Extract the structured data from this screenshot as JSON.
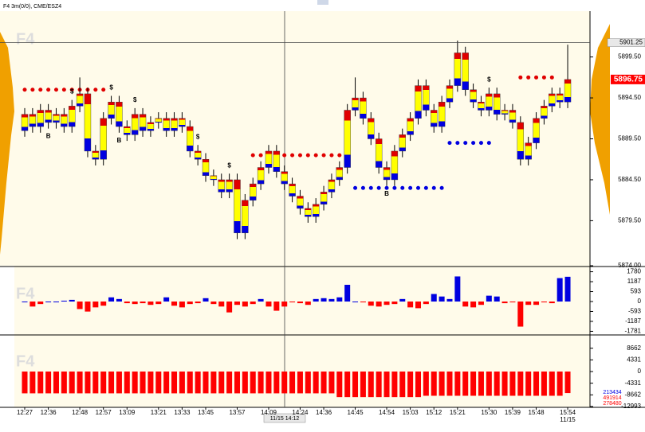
{
  "header": {
    "title": "F4 3m(0/0), CME/ESZ4"
  },
  "watermark": "F4",
  "x_axis": {
    "categories": [
      "12:27",
      null,
      null,
      "12:36",
      null,
      null,
      null,
      "12:48",
      null,
      null,
      "12:57",
      null,
      null,
      "13:09",
      null,
      null,
      null,
      "13:21",
      null,
      null,
      "13:33",
      null,
      null,
      "13:45",
      null,
      null,
      null,
      "13:57",
      null,
      null,
      null,
      "14:09",
      null,
      null,
      null,
      "14:24",
      null,
      null,
      "14:36",
      null,
      null,
      null,
      "14:45",
      null,
      null,
      null,
      "14:54",
      null,
      null,
      "15:03",
      null,
      null,
      "15:12",
      null,
      null,
      "15:21",
      null,
      null,
      null,
      "15:30",
      null,
      null,
      "15:39",
      null,
      null,
      "15:48",
      null,
      null,
      null,
      "15:54"
    ],
    "date": "11/15",
    "cursor_label": "11/15 14:12"
  },
  "chart_data": [
    {
      "type": "candlestick",
      "open": [
        5890.5,
        5892.5,
        5891,
        5893,
        5891.5,
        5892.5,
        5891,
        5893.5,
        5895,
        5888,
        5887,
        5892,
        5894,
        5891,
        5890,
        5892.5,
        5890.5,
        5891.5,
        5892,
        5890.5,
        5892,
        5891,
        5888,
        5887,
        5885,
        5884.5,
        5883,
        5884.5,
        5878,
        5882,
        5884,
        5886,
        5888,
        5885.5,
        5884,
        5882.5,
        5881,
        5880,
        5881.5,
        5883,
        5884.5,
        5886,
        5893,
        5894.5,
        5892,
        5889.5,
        5886,
        5884.5,
        5888,
        5890,
        5892,
        5896,
        5893,
        5891,
        5894,
        5896,
        5900,
        5895.5,
        5894,
        5893,
        5895,
        5892.5,
        5893,
        5891.5,
        5887,
        5889,
        5892,
        5893.5,
        5895,
        5894
      ],
      "high": [
        5893.25,
        5893.25,
        5893.75,
        5893.75,
        5893.25,
        5893.25,
        5894.25,
        5897,
        5895.75,
        5888.75,
        5892.75,
        5894.75,
        5894.75,
        5891.75,
        5893.25,
        5893.25,
        5892.25,
        5892.75,
        5892.75,
        5892.75,
        5892.75,
        5891.75,
        5888.75,
        5887.75,
        5885.75,
        5885.25,
        5885.25,
        5885.25,
        5882.75,
        5884.75,
        5886.75,
        5888.75,
        5888.75,
        5886.25,
        5884.75,
        5883.25,
        5881.75,
        5882.25,
        5883.75,
        5885.25,
        5886.75,
        5893.75,
        5897,
        5895.25,
        5892.75,
        5890.25,
        5886.75,
        5888.75,
        5890.75,
        5892.75,
        5896.75,
        5896.75,
        5893.75,
        5894.75,
        5896.75,
        5901.5,
        5900.75,
        5896.25,
        5894.75,
        5895.75,
        5895.75,
        5893.75,
        5893.75,
        5892.25,
        5889.75,
        5892.75,
        5894.25,
        5895.75,
        5895.75,
        5901
      ],
      "low": [
        5889.75,
        5890.25,
        5890.25,
        5890.75,
        5890.75,
        5890.25,
        5890.25,
        5892.75,
        5887.25,
        5886.25,
        5886.25,
        5891.25,
        5890.25,
        5889.25,
        5889.25,
        5889.75,
        5889.75,
        5890.75,
        5889.75,
        5889.75,
        5890.25,
        5887.25,
        5886.25,
        5884.25,
        5883.75,
        5882.25,
        5882.25,
        5877.25,
        5877.25,
        5881.25,
        5883.25,
        5885.25,
        5884.75,
        5883.25,
        5881.75,
        5880.25,
        5879.25,
        5879.25,
        5880.75,
        5882.25,
        5883.75,
        5885.25,
        5892.25,
        5891.25,
        5888.75,
        5885.25,
        5883.75,
        5883.75,
        5887.25,
        5889.25,
        5891.25,
        5892.25,
        5890.25,
        5890.25,
        5893.25,
        5895.25,
        5894.75,
        5893.25,
        5892.25,
        5892.25,
        5891.75,
        5891.75,
        5890.75,
        5886.25,
        5886.25,
        5888.25,
        5891.25,
        5892.75,
        5893.25,
        5893.25
      ],
      "close": [
        5892.5,
        5891,
        5893,
        5891.5,
        5892.5,
        5891,
        5893.5,
        5895,
        5888,
        5887,
        5892,
        5894,
        5891,
        5890,
        5892.5,
        5890.5,
        5891.5,
        5892,
        5890.5,
        5892,
        5891,
        5888,
        5887,
        5885,
        5884.5,
        5883,
        5884.5,
        5878,
        5882,
        5884,
        5886,
        5888,
        5885.5,
        5884,
        5882.5,
        5881,
        5880,
        5881.5,
        5883,
        5884.5,
        5886,
        5893,
        5894.5,
        5892,
        5889.5,
        5886,
        5884.5,
        5888,
        5890,
        5892,
        5896,
        5893,
        5891,
        5894,
        5896,
        5900,
        5895.5,
        5894,
        5893,
        5895,
        5892.5,
        5893,
        5891.5,
        5887,
        5889,
        5892,
        5893.5,
        5895,
        5894,
        5896.75
      ],
      "colors": {
        "top": "#e00000",
        "body": "#ffff00",
        "bottom": "#0000e0",
        "wick": "#000000"
      },
      "ylim": [
        5874,
        5905
      ],
      "yticks": [
        {
          "value": 5899.5,
          "label": "5899.50"
        },
        {
          "value": 5894.5,
          "label": "5894.50"
        },
        {
          "value": 5889.5,
          "label": "5889.50"
        },
        {
          "value": 5884.5,
          "label": "5884.50"
        },
        {
          "value": 5879.5,
          "label": "5879.50"
        },
        {
          "value": 5874,
          "label": "5874.00"
        }
      ],
      "last_price": 5896.75,
      "cursor_price": 5901.25,
      "levels": [
        {
          "value": 5887.5,
          "color": "#e00000",
          "from": 29,
          "to": 41
        },
        {
          "value": 5883.5,
          "color": "#0000e0",
          "from": 42,
          "to": 53
        },
        {
          "value": 5889,
          "color": "#0000e0",
          "from": 54,
          "to": 59
        },
        {
          "value": 5897,
          "color": "#e00000",
          "from": 63,
          "to": 67
        },
        {
          "value": 5895.5,
          "color": "#e00000",
          "from": 0,
          "to": 10
        }
      ],
      "annotations": [
        {
          "text": "B",
          "index": 3,
          "position": "below"
        },
        {
          "text": "B",
          "index": 12,
          "position": "below"
        },
        {
          "text": "B",
          "index": 46,
          "position": "below"
        },
        {
          "text": "$",
          "index": 6,
          "position": "above"
        },
        {
          "text": "$",
          "index": 11,
          "position": "above"
        },
        {
          "text": "$",
          "index": 14,
          "position": "above"
        },
        {
          "text": "$",
          "index": 22,
          "position": "above"
        },
        {
          "text": "$",
          "index": 26,
          "position": "above"
        },
        {
          "text": "$",
          "index": 59,
          "position": "above"
        }
      ]
    },
    {
      "type": "bar",
      "values": [
        0,
        -300,
        -150,
        0,
        0,
        50,
        100,
        -450,
        -600,
        -350,
        -250,
        250,
        150,
        -100,
        -150,
        -100,
        -200,
        -150,
        250,
        -250,
        -350,
        -150,
        -100,
        200,
        -150,
        -300,
        -650,
        -200,
        -300,
        -150,
        150,
        -300,
        -550,
        -300,
        -50,
        -100,
        -200,
        150,
        200,
        150,
        250,
        1000,
        0,
        -50,
        -250,
        -300,
        -200,
        -150,
        150,
        -350,
        -400,
        -150,
        450,
        300,
        150,
        1500,
        -300,
        -350,
        -200,
        350,
        300,
        -100,
        -50,
        -1500,
        -200,
        -200,
        -50,
        -100,
        1400,
        1480
      ],
      "colors": {
        "positive": "#0000e0",
        "negative": "#ff0000"
      },
      "ylim": [
        -1950,
        1950
      ],
      "yticks": [
        1780,
        1187,
        593,
        0,
        -593,
        -1187,
        -1781
      ]
    },
    {
      "type": "bar",
      "values": [
        -8100,
        -8100,
        -8100,
        -8100,
        -8100,
        -8100,
        -8100,
        -8100,
        -8100,
        -8100,
        -8100,
        -8100,
        -8100,
        -8100,
        -8100,
        -8100,
        -8100,
        -8100,
        -8100,
        -8100,
        -8100,
        -8100,
        -8100,
        -8100,
        -8100,
        -8100,
        -8100,
        -8100,
        -8100,
        -8100,
        -8100,
        -8100,
        -8100,
        -8100,
        -8100,
        -8100,
        -8100,
        -8100,
        -8100,
        -8100,
        -9500,
        -9500,
        -9500,
        -9500,
        -9500,
        -9500,
        -9500,
        -9500,
        -9500,
        -9500,
        -9500,
        -9000,
        -9000,
        -9000,
        -9000,
        -9000,
        -9000,
        -9000,
        -9000,
        -9000,
        -9000,
        -9000,
        -9000,
        -9000,
        -9000,
        -9000,
        -9000,
        -9000,
        -9000,
        -8000
      ],
      "color": "#ff0000",
      "ylim": [
        -13000,
        12700
      ],
      "yticks": [
        8662,
        4331,
        0,
        -4331,
        -8662,
        -12993
      ],
      "totals": [
        {
          "value": 213434,
          "color": "#0000e0"
        },
        {
          "value": 491914,
          "color": "#ff0000"
        },
        {
          "value": 278480,
          "color": "#ff0000"
        }
      ]
    }
  ]
}
